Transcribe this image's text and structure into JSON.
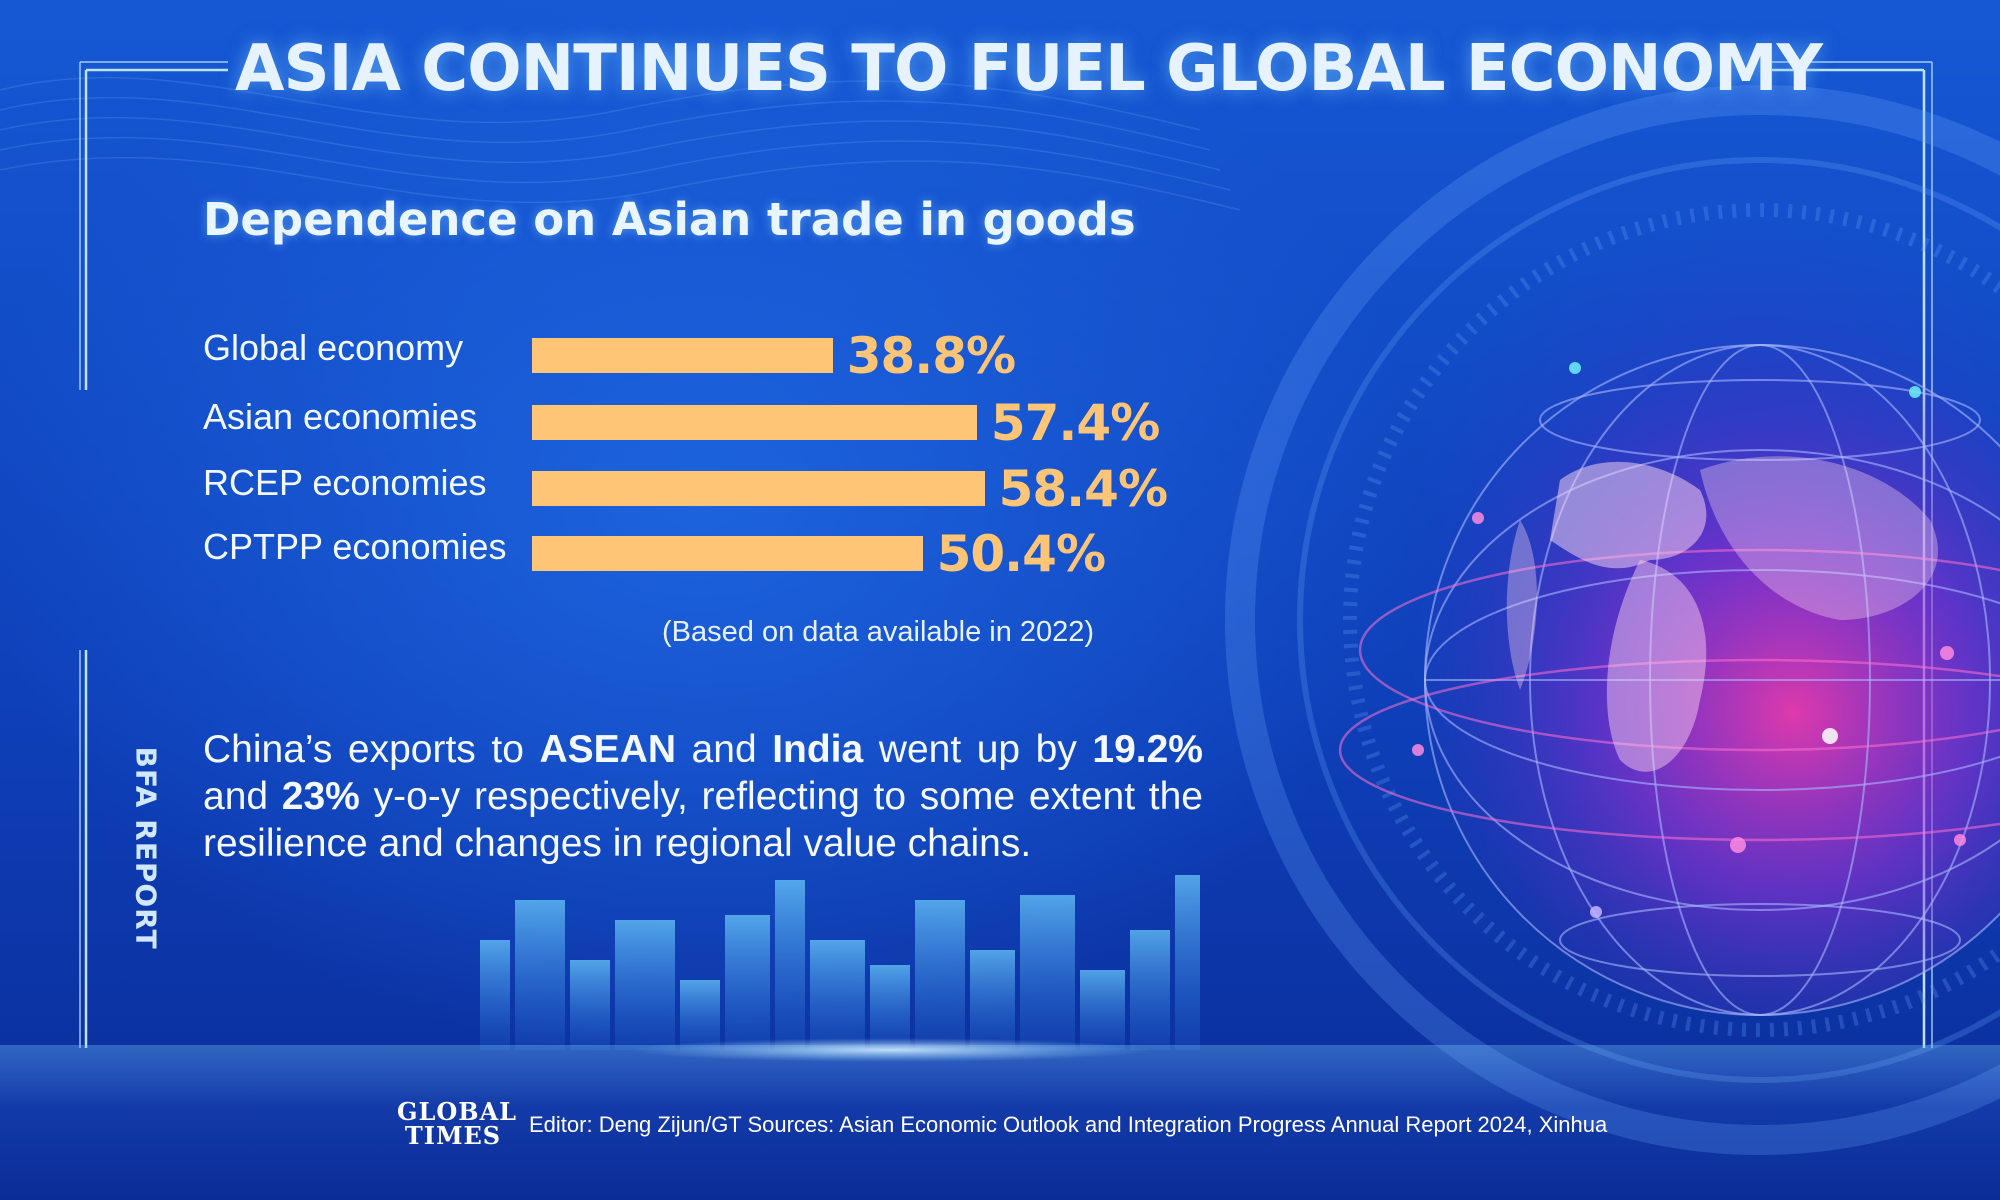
{
  "title": "ASIA CONTINUES TO FUEL GLOBAL ECONOMY",
  "side_label": "BFA REPORT",
  "chart_data": {
    "type": "bar",
    "orientation": "horizontal",
    "title": "Dependence on Asian trade in goods",
    "categories": [
      "Global economy",
      "Asian economies",
      "RCEP economies",
      "CPTPP economies"
    ],
    "values": [
      38.8,
      57.4,
      58.4,
      50.4
    ],
    "value_labels": [
      "38.8%",
      "57.4%",
      "58.4%",
      "50.4%"
    ],
    "unit": "%",
    "xlim": [
      0,
      100
    ],
    "bar_color": "#ffc576",
    "grid": false,
    "legend": "none"
  },
  "note": "(Based on data available in 2022)",
  "paragraph": {
    "p1": "China’s exports to ",
    "b1": "ASEAN",
    "p2": " and ",
    "b2": "India",
    "p3": " went up by ",
    "b3": "19.2%",
    "p4": " and ",
    "b4": "23%",
    "p5": " y-o-y respectively, reflecting to some extent the resilience and changes in regional value chains."
  },
  "footer": {
    "logo_line1": "GLOBAL",
    "logo_line2": "TIMES",
    "credits": "Editor: Deng Zijun/GT  Sources: Asian Economic Outlook and Integration Progress Annual Report 2024, Xinhua"
  },
  "colors": {
    "background": "#1658d4",
    "accent": "#ffc576",
    "frame": "#bfe3ff"
  }
}
